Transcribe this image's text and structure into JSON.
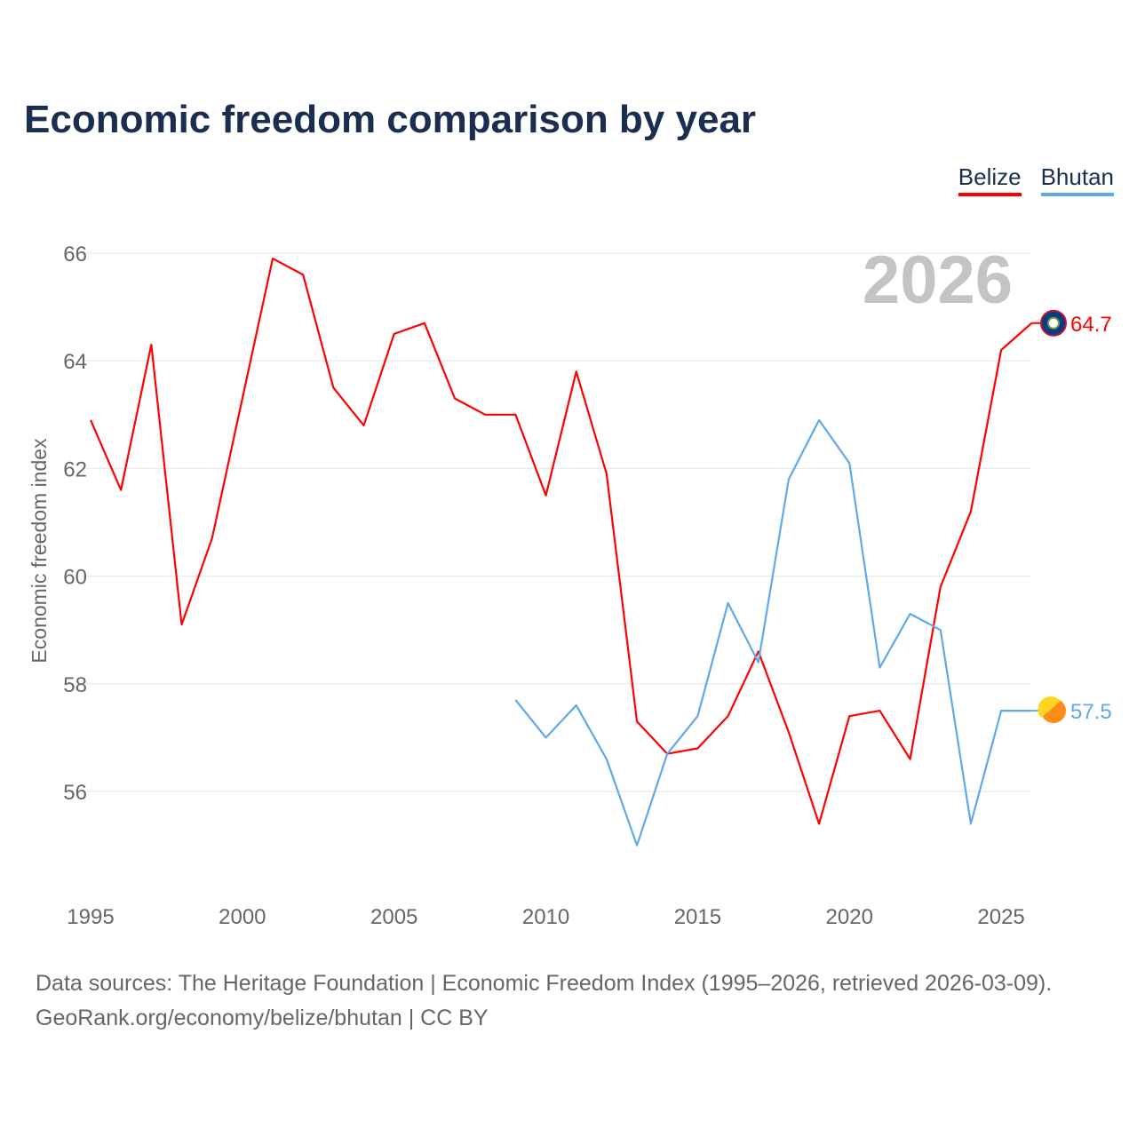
{
  "chart_data": {
    "type": "line",
    "title": "Economic freedom comparison by year",
    "ylabel": "Economic freedom index",
    "xlabel": "",
    "year_watermark": "2026",
    "xticks": [
      1995,
      2000,
      2005,
      2010,
      2015,
      2020,
      2025
    ],
    "yticks": [
      56,
      58,
      60,
      62,
      64,
      66
    ],
    "xlim": [
      1995,
      2026
    ],
    "grid": true,
    "legend_position": "top-right",
    "series": [
      {
        "name": "Belize",
        "color": "#ff0000",
        "end_label": "64.7",
        "x": [
          1995,
          1996,
          1997,
          1998,
          1999,
          2000,
          2001,
          2002,
          2003,
          2004,
          2005,
          2006,
          2007,
          2008,
          2009,
          2010,
          2011,
          2012,
          2013,
          2014,
          2015,
          2016,
          2017,
          2018,
          2019,
          2020,
          2021,
          2022,
          2023,
          2024,
          2025,
          2026
        ],
        "values": [
          62.9,
          61.6,
          64.3,
          59.1,
          60.7,
          63.3,
          65.9,
          65.6,
          63.5,
          62.8,
          64.5,
          64.7,
          63.3,
          63.0,
          63.0,
          61.5,
          63.8,
          61.9,
          57.3,
          56.7,
          56.8,
          57.4,
          58.6,
          57.1,
          55.4,
          57.4,
          57.5,
          56.6,
          59.8,
          61.2,
          64.2,
          64.7
        ]
      },
      {
        "name": "Bhutan",
        "color": "#5ea8ec",
        "end_label": "57.5",
        "x": [
          2009,
          2010,
          2011,
          2012,
          2013,
          2014,
          2015,
          2016,
          2017,
          2018,
          2019,
          2020,
          2021,
          2022,
          2023,
          2024,
          2025,
          2026
        ],
        "values": [
          57.7,
          57.0,
          57.6,
          56.6,
          55.0,
          56.7,
          57.4,
          59.5,
          58.4,
          61.8,
          62.9,
          62.1,
          58.3,
          59.3,
          59.0,
          55.4,
          57.5,
          57.5
        ]
      }
    ]
  },
  "source": {
    "line1": "Data sources: The Heritage Foundation | Economic Freedom Index (1995–2026, retrieved 2026-03-09).",
    "line2": "GeoRank.org/economy/belize/bhutan | CC BY"
  }
}
